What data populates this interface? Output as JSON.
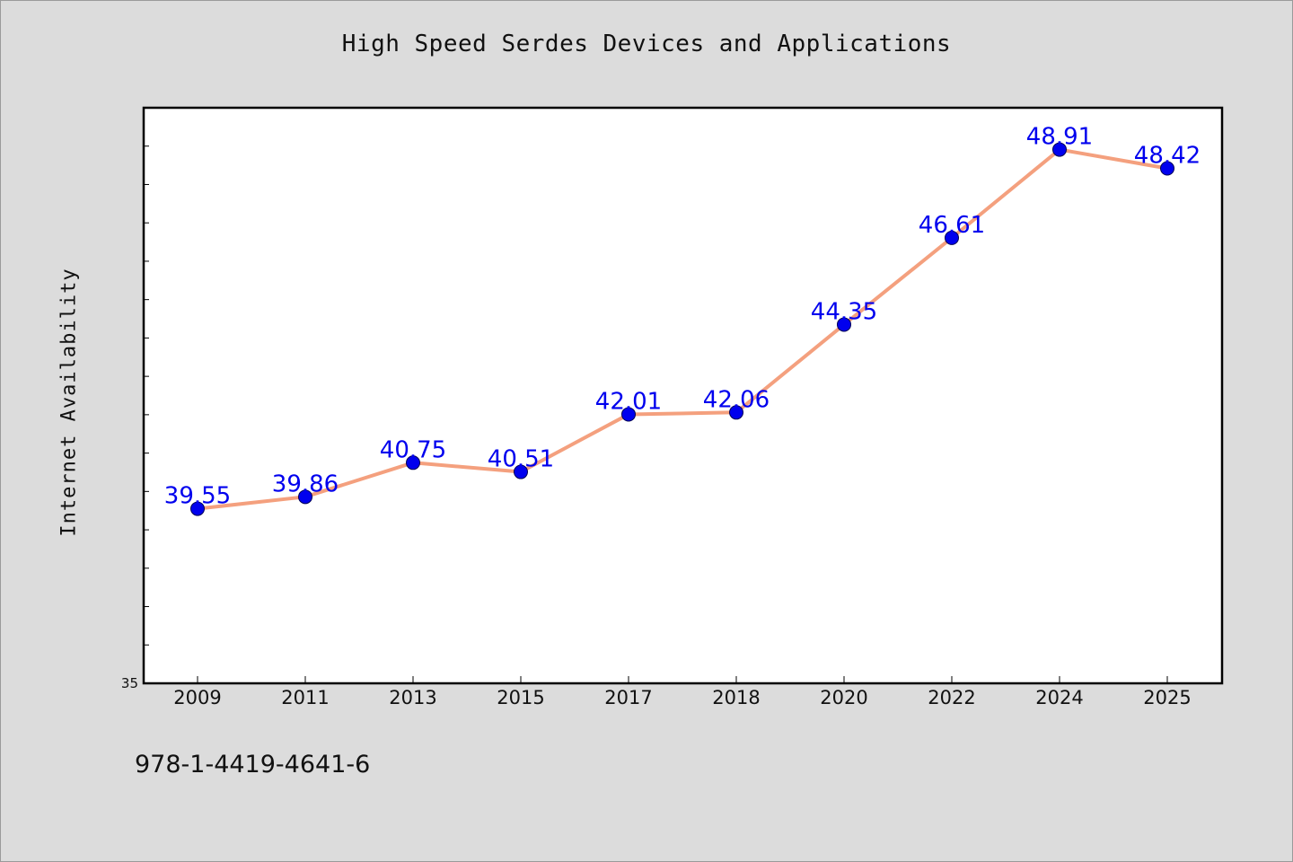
{
  "chart_data": {
    "type": "line",
    "title": "High Speed Serdes Devices and Applications",
    "xlabel": "",
    "ylabel": "Internet Availability",
    "categories": [
      "2009",
      "2011",
      "2013",
      "2015",
      "2017",
      "2018",
      "2020",
      "2022",
      "2024",
      "2025"
    ],
    "series": [
      {
        "values": [
          39.55,
          39.86,
          40.75,
          40.51,
          42.01,
          42.06,
          44.35,
          46.61,
          48.91,
          48.42
        ],
        "labels": [
          "39.55",
          "39.86",
          "40.75",
          "40.51",
          "42.01",
          "42.06",
          "44.35",
          "46.61",
          "48.91",
          "48.42"
        ],
        "line_color": "#f4a07e",
        "marker_color": "#0000ee",
        "label_color": "#0000ee"
      }
    ],
    "ylim": [
      35,
      50
    ],
    "y_tick_labels": [
      "35"
    ],
    "grid": false,
    "legend": "none"
  },
  "footer": {
    "isbn": "978-1-4419-4641-6"
  }
}
